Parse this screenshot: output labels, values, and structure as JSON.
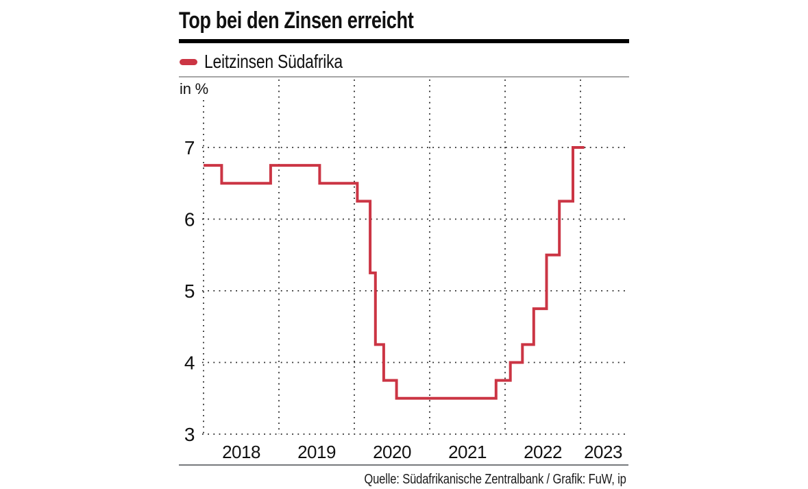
{
  "page": {
    "background": "#ffffff"
  },
  "header": {
    "title": "Top bei den Zinsen erreicht",
    "legend": {
      "label": "Leitzinsen Südafrika",
      "swatch_color": "#cb3544"
    },
    "unit_label": "in %"
  },
  "footer": {
    "source": "Quelle: Südafrikanische Zentralbank / Grafik: FuW, ip"
  },
  "colors": {
    "line": "#cb3544",
    "grid_dots": "#222222",
    "title_rule": "#000000",
    "divider_top": "#a6a6a6",
    "divider_bottom": "#76797c",
    "text": "#111111"
  },
  "chart_data": {
    "type": "line",
    "line_style": "step-after",
    "title": "Top bei den Zinsen erreicht",
    "xlabel": "",
    "ylabel": "in %",
    "legend_position": "top-left",
    "grid": "dotted",
    "xlim": [
      2018.0,
      2023.6
    ],
    "ylim": [
      3,
      8
    ],
    "x_ticks": [
      {
        "value": 2018,
        "label": "2018"
      },
      {
        "value": 2019,
        "label": "2019"
      },
      {
        "value": 2020,
        "label": "2020"
      },
      {
        "value": 2021,
        "label": "2021"
      },
      {
        "value": 2022,
        "label": "2022"
      },
      {
        "value": 2023,
        "label": "2023"
      }
    ],
    "x_tick_label_position": "between-gridlines",
    "y_ticks": [
      {
        "value": 3,
        "label": "3"
      },
      {
        "value": 4,
        "label": "4"
      },
      {
        "value": 5,
        "label": "5"
      },
      {
        "value": 6,
        "label": "6"
      },
      {
        "value": 7,
        "label": "7"
      }
    ],
    "series": [
      {
        "name": "Leitzinsen Südafrika",
        "color": "#cb3544",
        "unit": "%",
        "points": [
          [
            2018.0,
            6.75
          ],
          [
            2018.24,
            6.5
          ],
          [
            2018.89,
            6.75
          ],
          [
            2019.54,
            6.5
          ],
          [
            2020.04,
            6.25
          ],
          [
            2020.21,
            5.25
          ],
          [
            2020.28,
            4.25
          ],
          [
            2020.39,
            3.75
          ],
          [
            2020.56,
            3.5
          ],
          [
            2021.88,
            3.75
          ],
          [
            2022.07,
            4.0
          ],
          [
            2022.23,
            4.25
          ],
          [
            2022.38,
            4.75
          ],
          [
            2022.55,
            5.5
          ],
          [
            2022.72,
            6.25
          ],
          [
            2022.9,
            7.0
          ],
          [
            2023.05,
            7.0
          ]
        ]
      }
    ]
  }
}
